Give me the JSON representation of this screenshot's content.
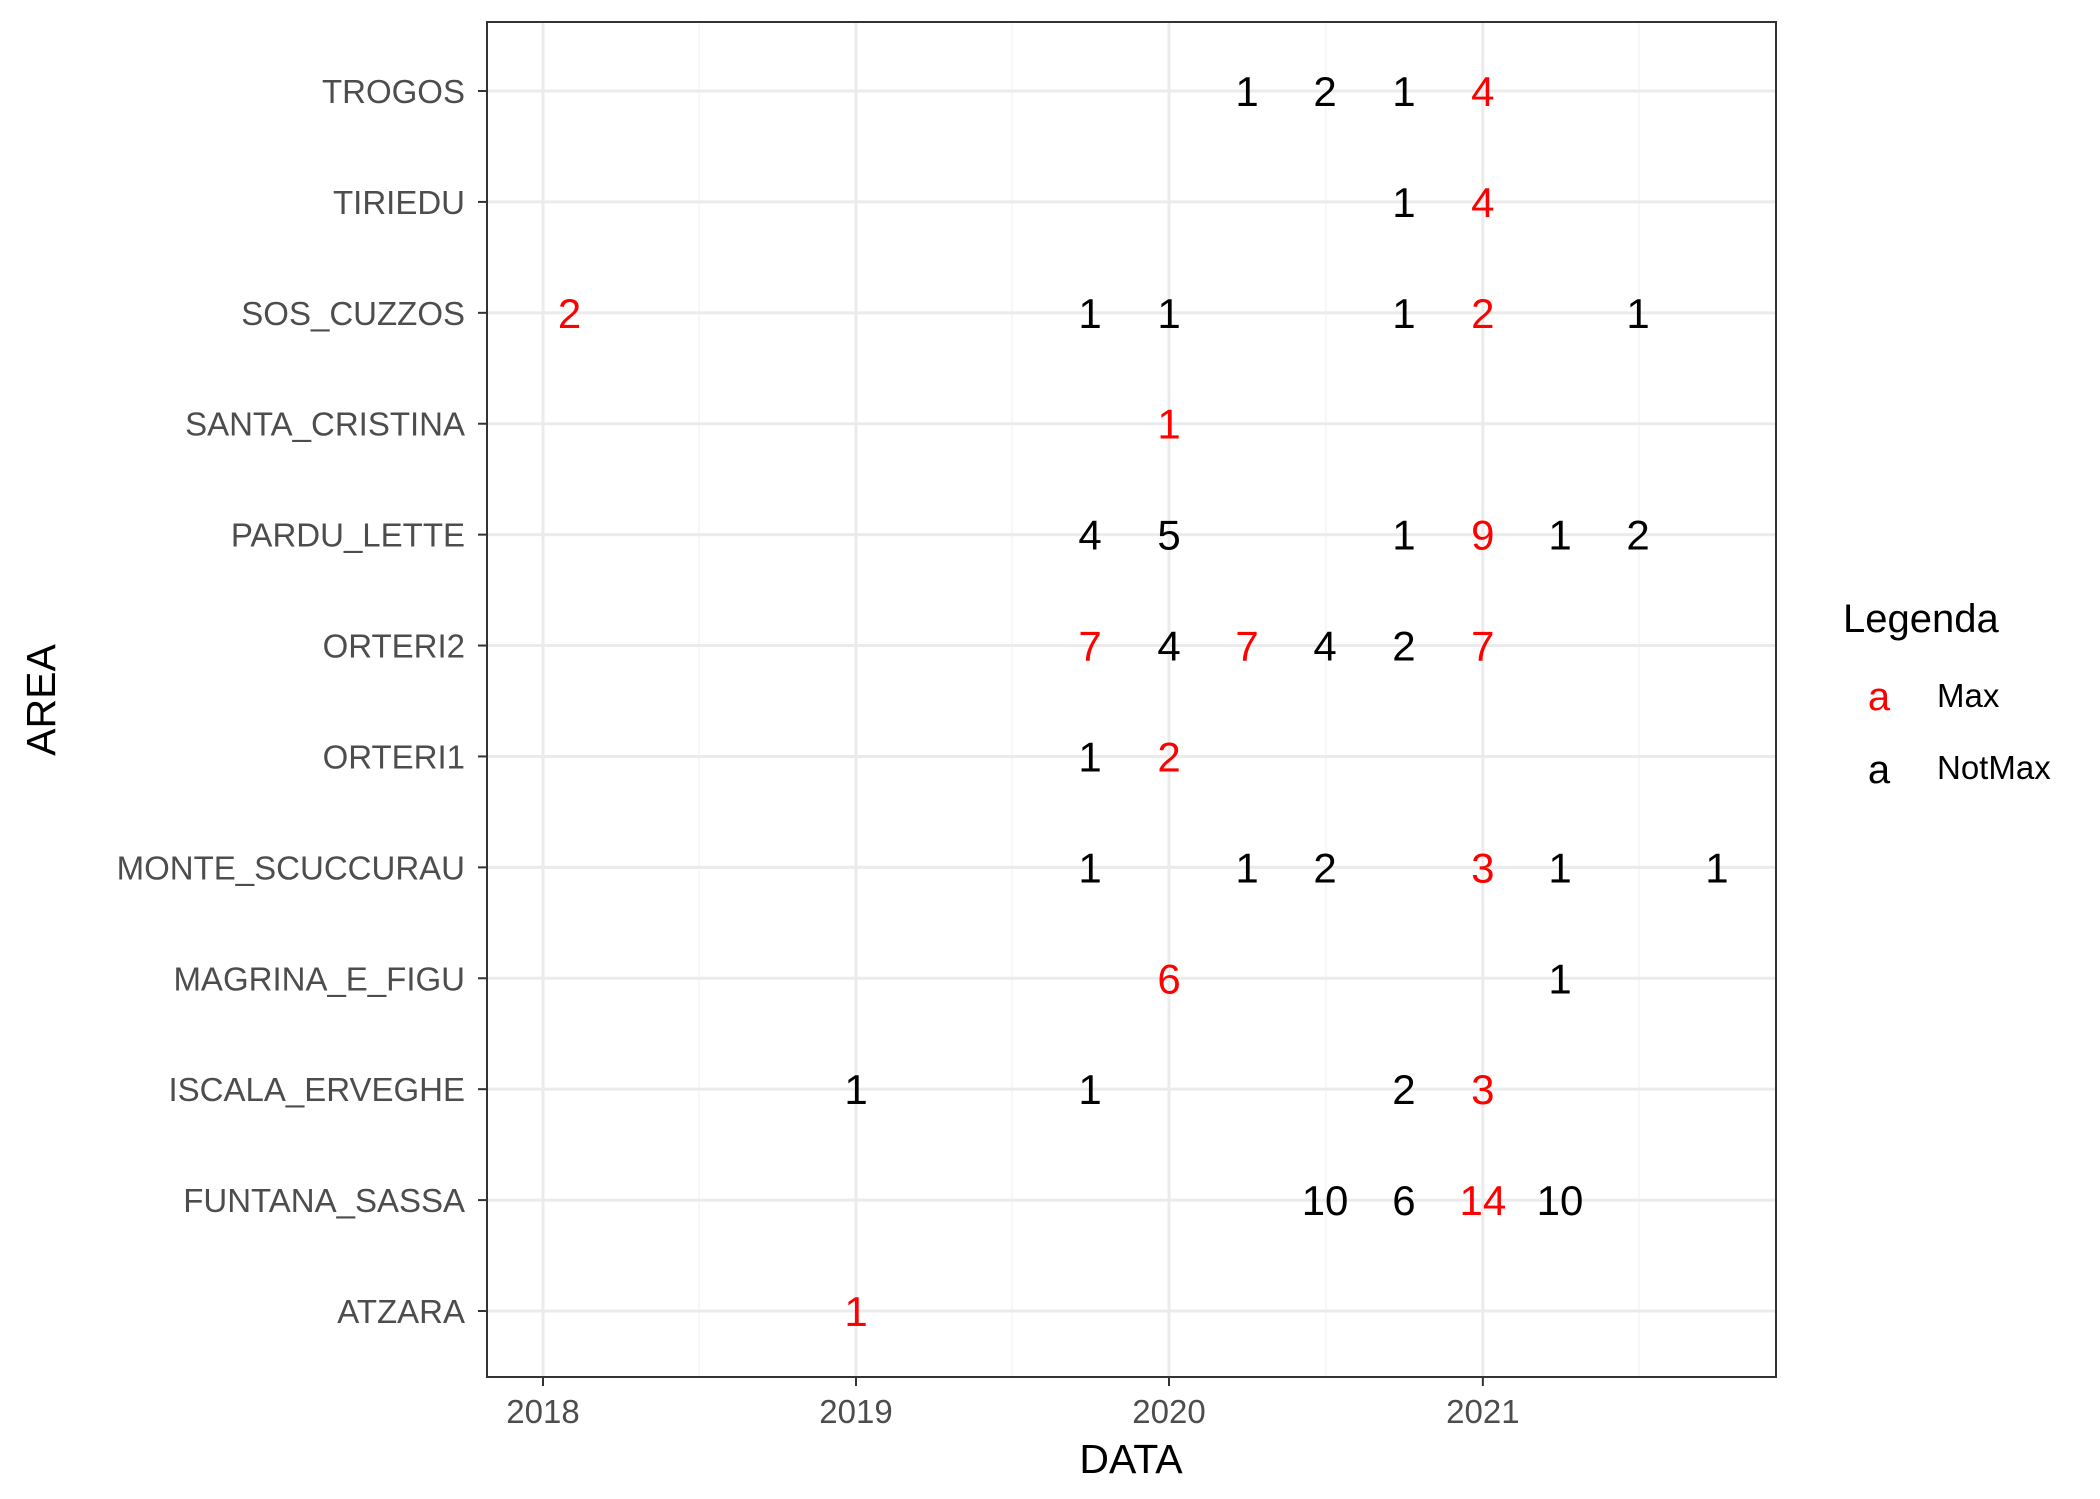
{
  "colors": {
    "Max": "#ff0000",
    "NotMax": "#000000",
    "grid_major": "#ebebeb",
    "grid_minor": "#f5f5f5",
    "panel_border": "#333333",
    "axis_text": "#4d4d4d"
  },
  "chart_data": {
    "type": "scatter",
    "subtype": "text-labels",
    "xlabel": "DATA",
    "ylabel": "AREA",
    "x_ticks": [
      "2018",
      "2019",
      "2020",
      "2021"
    ],
    "xlim": [
      "2017-10-01",
      "2021-12-31"
    ],
    "grid": true,
    "legend": {
      "title": "Legenda",
      "position": "right",
      "key_glyph": "a",
      "entries": [
        {
          "name": "Max",
          "color": "#ff0000"
        },
        {
          "name": "NotMax",
          "color": "#000000"
        }
      ]
    },
    "categories": [
      "ATZARA",
      "FUNTANA_SASSA",
      "ISCALA_ERVEGHE",
      "MAGRINA_E_FIGU",
      "MONTE_SCUCCURAU",
      "ORTERI1",
      "ORTERI2",
      "PARDU_LETTE",
      "SANTA_CRISTINA",
      "SOS_CUZZOS",
      "TIRIEDU",
      "TROGOS"
    ],
    "points": [
      {
        "area": "TROGOS",
        "date": "2020-04-01",
        "value": 1,
        "type": "NotMax"
      },
      {
        "area": "TROGOS",
        "date": "2020-07-01",
        "value": 2,
        "type": "NotMax"
      },
      {
        "area": "TROGOS",
        "date": "2020-10-01",
        "value": 1,
        "type": "NotMax"
      },
      {
        "area": "TROGOS",
        "date": "2021-01-01",
        "value": 4,
        "type": "Max"
      },
      {
        "area": "TIRIEDU",
        "date": "2020-10-01",
        "value": 1,
        "type": "NotMax"
      },
      {
        "area": "TIRIEDU",
        "date": "2021-01-01",
        "value": 4,
        "type": "Max"
      },
      {
        "area": "SOS_CUZZOS",
        "date": "2018-02-01",
        "value": 2,
        "type": "Max"
      },
      {
        "area": "SOS_CUZZOS",
        "date": "2019-10-01",
        "value": 1,
        "type": "NotMax"
      },
      {
        "area": "SOS_CUZZOS",
        "date": "2020-01-01",
        "value": 1,
        "type": "NotMax"
      },
      {
        "area": "SOS_CUZZOS",
        "date": "2020-10-01",
        "value": 1,
        "type": "NotMax"
      },
      {
        "area": "SOS_CUZZOS",
        "date": "2021-01-01",
        "value": 2,
        "type": "Max"
      },
      {
        "area": "SOS_CUZZOS",
        "date": "2021-07-01",
        "value": 1,
        "type": "NotMax"
      },
      {
        "area": "SANTA_CRISTINA",
        "date": "2020-01-01",
        "value": 1,
        "type": "Max"
      },
      {
        "area": "PARDU_LETTE",
        "date": "2019-10-01",
        "value": 4,
        "type": "NotMax"
      },
      {
        "area": "PARDU_LETTE",
        "date": "2020-01-01",
        "value": 5,
        "type": "NotMax"
      },
      {
        "area": "PARDU_LETTE",
        "date": "2020-10-01",
        "value": 1,
        "type": "NotMax"
      },
      {
        "area": "PARDU_LETTE",
        "date": "2021-01-01",
        "value": 9,
        "type": "Max"
      },
      {
        "area": "PARDU_LETTE",
        "date": "2021-04-01",
        "value": 1,
        "type": "NotMax"
      },
      {
        "area": "PARDU_LETTE",
        "date": "2021-07-01",
        "value": 2,
        "type": "NotMax"
      },
      {
        "area": "ORTERI2",
        "date": "2019-10-01",
        "value": 7,
        "type": "Max"
      },
      {
        "area": "ORTERI2",
        "date": "2020-01-01",
        "value": 4,
        "type": "NotMax"
      },
      {
        "area": "ORTERI2",
        "date": "2020-04-01",
        "value": 7,
        "type": "Max"
      },
      {
        "area": "ORTERI2",
        "date": "2020-07-01",
        "value": 4,
        "type": "NotMax"
      },
      {
        "area": "ORTERI2",
        "date": "2020-10-01",
        "value": 2,
        "type": "NotMax"
      },
      {
        "area": "ORTERI2",
        "date": "2021-01-01",
        "value": 7,
        "type": "Max"
      },
      {
        "area": "ORTERI1",
        "date": "2019-10-01",
        "value": 1,
        "type": "NotMax"
      },
      {
        "area": "ORTERI1",
        "date": "2020-01-01",
        "value": 2,
        "type": "Max"
      },
      {
        "area": "MONTE_SCUCCURAU",
        "date": "2019-10-01",
        "value": 1,
        "type": "NotMax"
      },
      {
        "area": "MONTE_SCUCCURAU",
        "date": "2020-04-01",
        "value": 1,
        "type": "NotMax"
      },
      {
        "area": "MONTE_SCUCCURAU",
        "date": "2020-07-01",
        "value": 2,
        "type": "NotMax"
      },
      {
        "area": "MONTE_SCUCCURAU",
        "date": "2021-01-01",
        "value": 3,
        "type": "Max"
      },
      {
        "area": "MONTE_SCUCCURAU",
        "date": "2021-04-01",
        "value": 1,
        "type": "NotMax"
      },
      {
        "area": "MONTE_SCUCCURAU",
        "date": "2021-10-01",
        "value": 1,
        "type": "NotMax"
      },
      {
        "area": "MAGRINA_E_FIGU",
        "date": "2020-01-01",
        "value": 6,
        "type": "Max"
      },
      {
        "area": "MAGRINA_E_FIGU",
        "date": "2021-04-01",
        "value": 1,
        "type": "NotMax"
      },
      {
        "area": "ISCALA_ERVEGHE",
        "date": "2019-01-01",
        "value": 1,
        "type": "NotMax"
      },
      {
        "area": "ISCALA_ERVEGHE",
        "date": "2019-10-01",
        "value": 1,
        "type": "NotMax"
      },
      {
        "area": "ISCALA_ERVEGHE",
        "date": "2020-10-01",
        "value": 2,
        "type": "NotMax"
      },
      {
        "area": "ISCALA_ERVEGHE",
        "date": "2021-01-01",
        "value": 3,
        "type": "Max"
      },
      {
        "area": "FUNTANA_SASSA",
        "date": "2020-07-01",
        "value": 10,
        "type": "NotMax"
      },
      {
        "area": "FUNTANA_SASSA",
        "date": "2020-10-01",
        "value": 6,
        "type": "NotMax"
      },
      {
        "area": "FUNTANA_SASSA",
        "date": "2021-01-01",
        "value": 14,
        "type": "Max"
      },
      {
        "area": "FUNTANA_SASSA",
        "date": "2021-04-01",
        "value": 10,
        "type": "NotMax"
      },
      {
        "area": "ATZARA",
        "date": "2019-01-01",
        "value": 1,
        "type": "Max"
      }
    ]
  }
}
